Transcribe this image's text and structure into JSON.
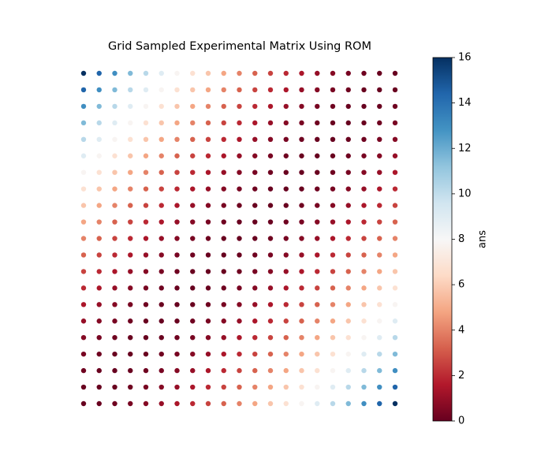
{
  "chart_data": {
    "type": "scatter-grid",
    "title": "Grid Sampled Experimental Matrix Using ROM",
    "values": [
      [
        16,
        14.44,
        12.96,
        11.56,
        10.24,
        9,
        7.84,
        6.76,
        5.76,
        4.84,
        4,
        3.24,
        2.56,
        1.96,
        1.44,
        1,
        0.64,
        0.36,
        0.16,
        0.04,
        0
      ],
      [
        14.44,
        12.96,
        11.56,
        10.24,
        9,
        7.84,
        6.76,
        5.76,
        4.84,
        4,
        3.24,
        2.56,
        1.96,
        1.44,
        1,
        0.64,
        0.36,
        0.16,
        0.04,
        0,
        0.04
      ],
      [
        12.96,
        11.56,
        10.24,
        9,
        7.84,
        6.76,
        5.76,
        4.84,
        4,
        3.24,
        2.56,
        1.96,
        1.44,
        1,
        0.64,
        0.36,
        0.16,
        0.04,
        0,
        0.04,
        0.16
      ],
      [
        11.56,
        10.24,
        9,
        7.84,
        6.76,
        5.76,
        4.84,
        4,
        3.24,
        2.56,
        1.96,
        1.44,
        1,
        0.64,
        0.36,
        0.16,
        0.04,
        0,
        0.04,
        0.16,
        0.36
      ],
      [
        10.24,
        9,
        7.84,
        6.76,
        5.76,
        4.84,
        4,
        3.24,
        2.56,
        1.96,
        1.44,
        1,
        0.64,
        0.36,
        0.16,
        0.04,
        0,
        0.04,
        0.16,
        0.36,
        0.64
      ],
      [
        9,
        7.84,
        6.76,
        5.76,
        4.84,
        4,
        3.24,
        2.56,
        1.96,
        1.44,
        1,
        0.64,
        0.36,
        0.16,
        0.04,
        0,
        0.04,
        0.16,
        0.36,
        0.64,
        1
      ],
      [
        7.84,
        6.76,
        5.76,
        4.84,
        4,
        3.24,
        2.56,
        1.96,
        1.44,
        1,
        0.64,
        0.36,
        0.16,
        0.04,
        0,
        0.04,
        0.16,
        0.36,
        0.64,
        1,
        1.44
      ],
      [
        6.76,
        5.76,
        4.84,
        4,
        3.24,
        2.56,
        1.96,
        1.44,
        1,
        0.64,
        0.36,
        0.16,
        0.04,
        0,
        0.04,
        0.16,
        0.36,
        0.64,
        1,
        1.44,
        1.96
      ],
      [
        5.76,
        4.84,
        4,
        3.24,
        2.56,
        1.96,
        1.44,
        1,
        0.64,
        0.36,
        0.16,
        0.04,
        0,
        0.04,
        0.16,
        0.36,
        0.64,
        1,
        1.44,
        1.96,
        2.56
      ],
      [
        4.84,
        4,
        3.24,
        2.56,
        1.96,
        1.44,
        1,
        0.64,
        0.36,
        0.16,
        0.04,
        0,
        0.04,
        0.16,
        0.36,
        0.64,
        1,
        1.44,
        1.96,
        2.56,
        3.24
      ],
      [
        4,
        3.24,
        2.56,
        1.96,
        1.44,
        1,
        0.64,
        0.36,
        0.16,
        0.04,
        0,
        0.04,
        0.16,
        0.36,
        0.64,
        1,
        1.44,
        1.96,
        2.56,
        3.24,
        4
      ],
      [
        3.24,
        2.56,
        1.96,
        1.44,
        1,
        0.64,
        0.36,
        0.16,
        0.04,
        0,
        0.04,
        0.16,
        0.36,
        0.64,
        1,
        1.44,
        1.96,
        2.56,
        3.24,
        4,
        4.84
      ],
      [
        2.56,
        1.96,
        1.44,
        1,
        0.64,
        0.36,
        0.16,
        0.04,
        0,
        0.04,
        0.16,
        0.36,
        0.64,
        1,
        1.44,
        1.96,
        2.56,
        3.24,
        4,
        4.84,
        5.76
      ],
      [
        1.96,
        1.44,
        1,
        0.64,
        0.36,
        0.16,
        0.04,
        0,
        0.04,
        0.16,
        0.36,
        0.64,
        1,
        1.44,
        1.96,
        2.56,
        3.24,
        4,
        4.84,
        5.76,
        6.76
      ],
      [
        1.44,
        1,
        0.64,
        0.36,
        0.16,
        0.04,
        0,
        0.04,
        0.16,
        0.36,
        0.64,
        1,
        1.44,
        1.96,
        2.56,
        3.24,
        4,
        4.84,
        5.76,
        6.76,
        7.84
      ],
      [
        1,
        0.64,
        0.36,
        0.16,
        0.04,
        0,
        0.04,
        0.16,
        0.36,
        0.64,
        1,
        1.44,
        1.96,
        2.56,
        3.24,
        4,
        4.84,
        5.76,
        6.76,
        7.84,
        9
      ],
      [
        0.64,
        0.36,
        0.16,
        0.04,
        0,
        0.04,
        0.16,
        0.36,
        0.64,
        1,
        1.44,
        1.96,
        2.56,
        3.24,
        4,
        4.84,
        5.76,
        6.76,
        7.84,
        9,
        10.24
      ],
      [
        0.36,
        0.16,
        0.04,
        0,
        0.04,
        0.16,
        0.36,
        0.64,
        1,
        1.44,
        1.96,
        2.56,
        3.24,
        4,
        4.84,
        5.76,
        6.76,
        7.84,
        9,
        10.24,
        11.56
      ],
      [
        0.16,
        0.04,
        0,
        0.04,
        0.16,
        0.36,
        0.64,
        1,
        1.44,
        1.96,
        2.56,
        3.24,
        4,
        4.84,
        5.76,
        6.76,
        7.84,
        9,
        10.24,
        11.56,
        12.96
      ],
      [
        0.04,
        0,
        0.04,
        0.16,
        0.36,
        0.64,
        1,
        1.44,
        1.96,
        2.56,
        3.24,
        4,
        4.84,
        5.76,
        6.76,
        7.84,
        9,
        10.24,
        11.56,
        12.96,
        14.44
      ],
      [
        0,
        0.04,
        0.16,
        0.36,
        0.64,
        1,
        1.44,
        1.96,
        2.56,
        3.24,
        4,
        4.84,
        5.76,
        6.76,
        7.84,
        9,
        10.24,
        11.56,
        12.96,
        14.44,
        16
      ]
    ],
    "colormap": [
      "#67001f",
      "#b2182b",
      "#d6604d",
      "#f4a582",
      "#fddbc7",
      "#f7f7f7",
      "#d1e5f0",
      "#92c5de",
      "#4393c3",
      "#2166ac",
      "#053061"
    ],
    "clim": [
      0,
      16
    ],
    "cticks": [
      0,
      2,
      4,
      6,
      8,
      10,
      12,
      14,
      16
    ],
    "clabel": "ans"
  }
}
